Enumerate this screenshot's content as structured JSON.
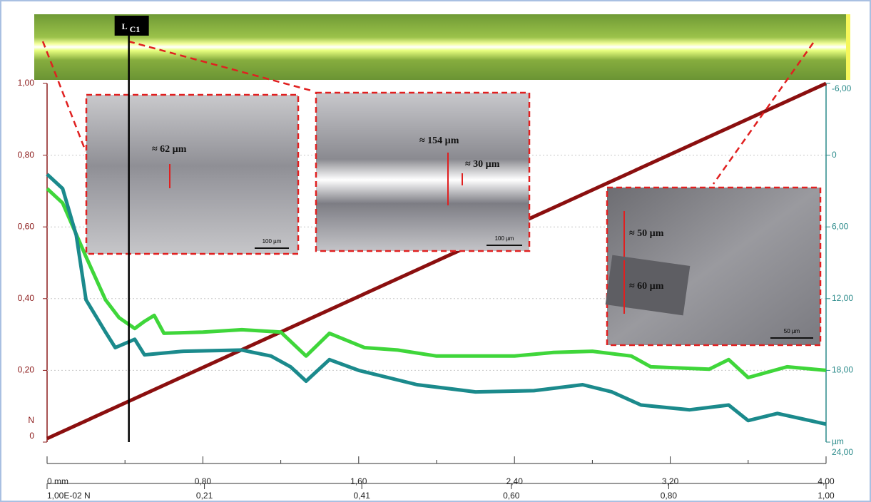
{
  "chart_data": {
    "type": "line",
    "xlim": [
      0,
      4
    ],
    "xticks": [
      {
        "value": 0,
        "label": "0  mm"
      },
      {
        "value": 0.8,
        "label": "0,80"
      },
      {
        "value": 1.6,
        "label": "1,60"
      },
      {
        "value": 2.4,
        "label": "2,40"
      },
      {
        "value": 3.2,
        "label": "3,20"
      },
      {
        "value": 4,
        "label": "4,00"
      }
    ],
    "xminorticks": [
      0.4,
      1.2,
      2.0,
      2.8,
      3.6
    ],
    "x2lim": [
      0.01,
      1.0
    ],
    "x2ticks": [
      {
        "value": 0.01,
        "label": "1,00E-02  N"
      },
      {
        "value": 0.21,
        "label": "0,21"
      },
      {
        "value": 0.41,
        "label": "0,41"
      },
      {
        "value": 0.6,
        "label": "0,60"
      },
      {
        "value": 0.8,
        "label": "0,80"
      },
      {
        "value": 1.0,
        "label": "1,00"
      }
    ],
    "ylim": [
      0,
      1
    ],
    "yticks": [
      0,
      {
        "value": 0.2,
        "label": "0,20"
      },
      {
        "value": 0.4,
        "label": "0,40"
      },
      {
        "value": 0.6,
        "label": "0,60"
      },
      {
        "value": 0.8,
        "label": "0,80"
      },
      {
        "value": 1,
        "label": "1,00"
      }
    ],
    "y_unit": "N",
    "y2lim": [
      -6,
      24
    ],
    "y2_inverted": true,
    "y2ticks": [
      {
        "value": -6,
        "label": "-6,00"
      },
      0,
      {
        "value": 6,
        "label": "6,00"
      },
      {
        "value": 12,
        "label": "12,00"
      },
      {
        "value": 18,
        "label": "18,00"
      },
      {
        "value": 24,
        "label": "24,00"
      }
    ],
    "y2_unit": "µm",
    "grid": true,
    "series": [
      {
        "color": "#8b0f0f",
        "axis": "y",
        "x": [
          0,
          4
        ],
        "values": [
          0.01,
          1.0
        ]
      },
      {
        "color": "#3fd63a",
        "axis": "y2",
        "x": [
          0,
          0.08,
          0.2,
          0.3,
          0.37,
          0.45,
          0.5,
          0.55,
          0.6,
          0.8,
          1.0,
          1.2,
          1.33,
          1.45,
          1.63,
          1.8,
          2.0,
          2.4,
          2.6,
          2.8,
          3.0,
          3.1,
          3.4,
          3.5,
          3.6,
          3.8,
          4.0
        ],
        "values": [
          2.8,
          4.0,
          8.5,
          12.1,
          13.6,
          14.5,
          13.9,
          13.4,
          14.9,
          14.8,
          14.6,
          14.8,
          16.8,
          14.9,
          16.1,
          16.3,
          16.8,
          16.8,
          16.5,
          16.4,
          16.8,
          17.7,
          17.9,
          17.1,
          18.6,
          17.7,
          18.0
        ]
      },
      {
        "color": "#1b8a8c",
        "axis": "y2",
        "x": [
          0,
          0.08,
          0.15,
          0.2,
          0.3,
          0.35,
          0.45,
          0.5,
          0.7,
          1.0,
          1.15,
          1.25,
          1.33,
          1.45,
          1.6,
          1.9,
          2.2,
          2.5,
          2.75,
          2.9,
          3.05,
          3.3,
          3.5,
          3.6,
          3.75,
          4.0
        ],
        "values": [
          1.6,
          2.8,
          6.7,
          12.1,
          14.8,
          16.1,
          15.4,
          16.7,
          16.4,
          16.3,
          16.8,
          17.7,
          18.9,
          17.1,
          18.0,
          19.2,
          19.8,
          19.7,
          19.2,
          19.8,
          20.9,
          21.3,
          20.9,
          22.2,
          21.6,
          22.5
        ]
      }
    ],
    "critical_load": {
      "label": "L",
      "subscript": "C1",
      "x": 0.42
    },
    "insets": [
      {
        "labels": [
          "≈ 62 µm"
        ],
        "scale_bar": "100 µm"
      },
      {
        "labels": [
          "≈ 154 µm",
          "≈ 30 µm"
        ],
        "scale_bar": "100 µm"
      },
      {
        "labels": [
          "≈ 50 µm",
          "≈ 60 µm"
        ],
        "scale_bar": "50 µm"
      }
    ]
  }
}
